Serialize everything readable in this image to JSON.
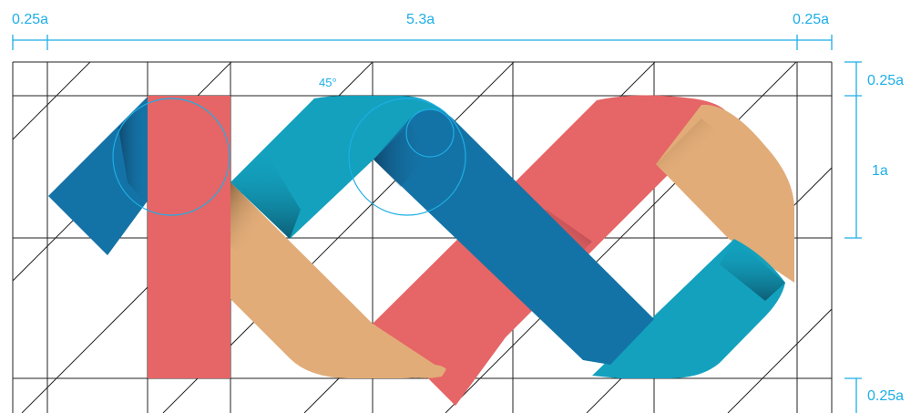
{
  "colors": {
    "red": "#e66566",
    "teal": "#13a1be",
    "blue": "#1473a6",
    "tan": "#e1ac78",
    "grid": "#222222",
    "annotation": "#1eaee6"
  },
  "dimensions": {
    "left_margin": "0.25a",
    "total_width": "5.3a",
    "right_margin": "0.25a",
    "top_margin": "0.25a",
    "height": "1a",
    "bottom_margin": "0.25a",
    "angle": "45°"
  }
}
